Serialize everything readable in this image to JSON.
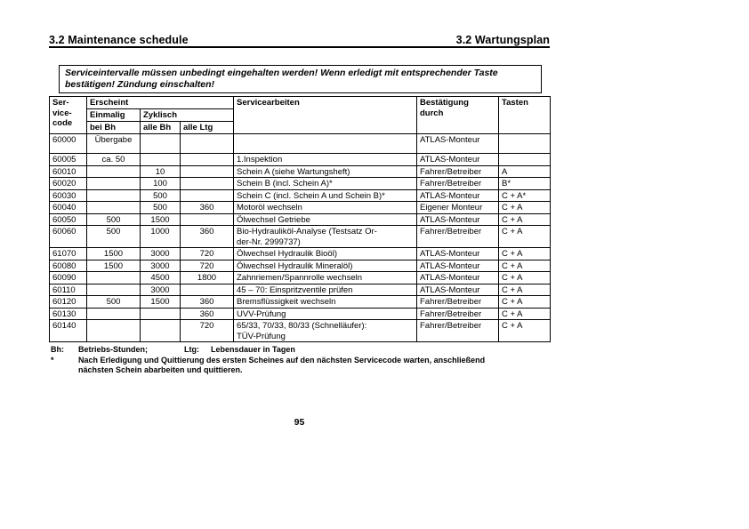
{
  "colors": {
    "text": "#000000",
    "page_background": "#ffffff",
    "table_border": "#000000"
  },
  "page": {
    "title_left": "3.2 Maintenance schedule",
    "title_right": "3.2 Wartungsplan",
    "page_number": "95"
  },
  "notice": {
    "lines": [
      "Serviceintervalle müssen unbedingt eingehalten werden! Wenn erledigt mit entsprechender Taste",
      "bestätigen! Zündung einschalten!"
    ]
  },
  "table": {
    "headers": {
      "service_code": "Ser-\nvice-\ncode",
      "erscheint": "Erscheint",
      "einmalig": "Einmalig",
      "zyklisch": "Zyklisch",
      "bei_bh": "bei Bh",
      "alle_bh": "alle Bh",
      "alle_ltg": "alle Ltg",
      "servicearbeiten": "Servicearbeiten",
      "bestaetigung_durch": "Bestätigung\ndurch",
      "tasten": "Tasten"
    },
    "rows": [
      {
        "code": "60000",
        "einmalig": "Übergabe",
        "alle_bh": "",
        "alle_ltg": "",
        "arbeiten": "",
        "bestaetigung": "ATLAS-Monteur",
        "tasten": "",
        "height": 22
      },
      {
        "code": "60005",
        "einmalig": "ca. 50",
        "alle_bh": "",
        "alle_ltg": "",
        "arbeiten": "1.Inspektion",
        "bestaetigung": "ATLAS-Monteur",
        "tasten": ""
      },
      {
        "code": "60010",
        "einmalig": "",
        "alle_bh": "10",
        "alle_ltg": "",
        "arbeiten": "Schein A (siehe Wartungsheft)",
        "bestaetigung": "Fahrer/Betreiber",
        "tasten": "A"
      },
      {
        "code": "60020",
        "einmalig": "",
        "alle_bh": "100",
        "alle_ltg": "",
        "arbeiten": "Schein B (incl. Schein A)*",
        "bestaetigung": "Fahrer/Betreiber",
        "tasten": "B*"
      },
      {
        "code": "60030",
        "einmalig": "",
        "alle_bh": "500",
        "alle_ltg": "",
        "arbeiten": "Schein C (incl. Schein A und Schein B)*",
        "bestaetigung": "ATLAS-Monteur",
        "tasten": "C + A*"
      },
      {
        "code": "60040",
        "einmalig": "",
        "alle_bh": "500",
        "alle_ltg": "360",
        "arbeiten": "Motoröl wechseln",
        "bestaetigung": "Eigener Monteur",
        "tasten": "C + A"
      },
      {
        "code": "60050",
        "einmalig": "500",
        "alle_bh": "1500",
        "alle_ltg": "",
        "arbeiten": "Ölwechsel Getriebe",
        "bestaetigung": "ATLAS-Monteur",
        "tasten": "C + A"
      },
      {
        "code": "60060",
        "einmalig": "500",
        "alle_bh": "1000",
        "alle_ltg": "360",
        "arbeiten": "Bio-Hydrauliköl-Analyse (Testsatz Or-\nder-Nr. 2999737)",
        "bestaetigung": "Fahrer/Betreiber",
        "tasten": "C + A"
      },
      {
        "code": "61070",
        "einmalig": "1500",
        "alle_bh": "3000",
        "alle_ltg": "720",
        "arbeiten": "Ölwechsel Hydraulik Bioöl)",
        "bestaetigung": "ATLAS-Monteur",
        "tasten": "C + A"
      },
      {
        "code": "60080",
        "einmalig": "1500",
        "alle_bh": "3000",
        "alle_ltg": "720",
        "arbeiten": "Ölwechsel Hydraulik Mineralöl)",
        "bestaetigung": "ATLAS-Monteur",
        "tasten": "C + A"
      },
      {
        "code": "60090",
        "einmalig": "",
        "alle_bh": "4500",
        "alle_ltg": "1800",
        "arbeiten": "Zahnriemen/Spannrolle wechseln",
        "bestaetigung": "ATLAS-Monteur",
        "tasten": "C + A"
      },
      {
        "code": "60110",
        "einmalig": "",
        "alle_bh": "3000",
        "alle_ltg": "",
        "arbeiten": "45 – 70: Einspritzventile prüfen",
        "bestaetigung": "ATLAS-Monteur",
        "tasten": "C + A"
      },
      {
        "code": "60120",
        "einmalig": "500",
        "alle_bh": "1500",
        "alle_ltg": "360",
        "arbeiten": "Bremsflüssigkeit wechseln",
        "bestaetigung": "Fahrer/Betreiber",
        "tasten": "C + A"
      },
      {
        "code": "60130",
        "einmalig": "",
        "alle_bh": "",
        "alle_ltg": "360",
        "arbeiten": "UVV-Prüfung",
        "bestaetigung": "Fahrer/Betreiber",
        "tasten": "C + A"
      },
      {
        "code": "60140",
        "einmalig": "",
        "alle_bh": "",
        "alle_ltg": "720",
        "arbeiten": "65/33, 70/33, 80/33 (Schnelläufer):\nTÜV-Prüfung",
        "bestaetigung": "Fahrer/Betreiber",
        "tasten": "C + A"
      }
    ]
  },
  "footnotes": {
    "bh_label": "Bh:",
    "bh_text": "Betriebs-Stunden;",
    "ltg_label": "Ltg:",
    "ltg_text": "Lebensdauer in Tagen",
    "star_label": "*",
    "star_text": "Nach Erledigung und Quittierung des ersten Scheines auf den nächsten Servicecode warten, anschließend\nnächsten Schein abarbeiten und quittieren."
  }
}
